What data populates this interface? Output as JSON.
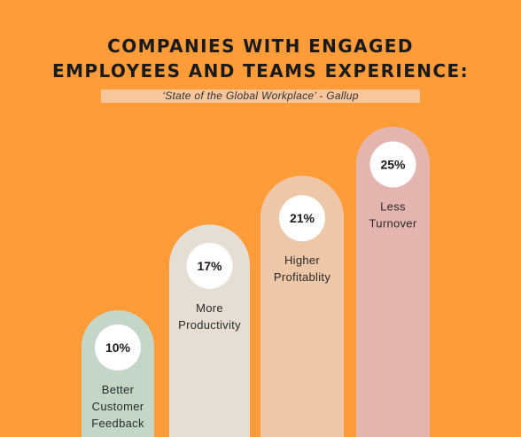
{
  "header": {
    "title_line1": "COMPANIES WITH ENGAGED",
    "title_line2": "EMPLOYEES AND TEAMS EXPERIENCE:",
    "subtitle": "‘State of  the Global Workplace’ - Gallup"
  },
  "colors": {
    "background": "#FF9C3A",
    "circle": "#FFFFFF"
  },
  "chart_data": {
    "type": "bar",
    "title": "COMPANIES WITH ENGAGED EMPLOYEES AND TEAMS EXPERIENCE:",
    "subtitle": "‘State of  the Global Workplace’ - Gallup",
    "categories": [
      [
        "Better",
        "Customer",
        "Feedback"
      ],
      [
        "More",
        "Productivity"
      ],
      [
        "Higher",
        "Profitablity"
      ],
      [
        "Less",
        "Turnover"
      ]
    ],
    "values": [
      10,
      17,
      21,
      25
    ],
    "value_labels": [
      "10%",
      "17%",
      "21%",
      "25%"
    ],
    "bar_colors": [
      "#C3D6C7",
      "#E4DED5",
      "#EEC6A8",
      "#E4B5AF"
    ],
    "ylim": [
      0,
      25
    ],
    "grid": false,
    "legend": "none"
  }
}
